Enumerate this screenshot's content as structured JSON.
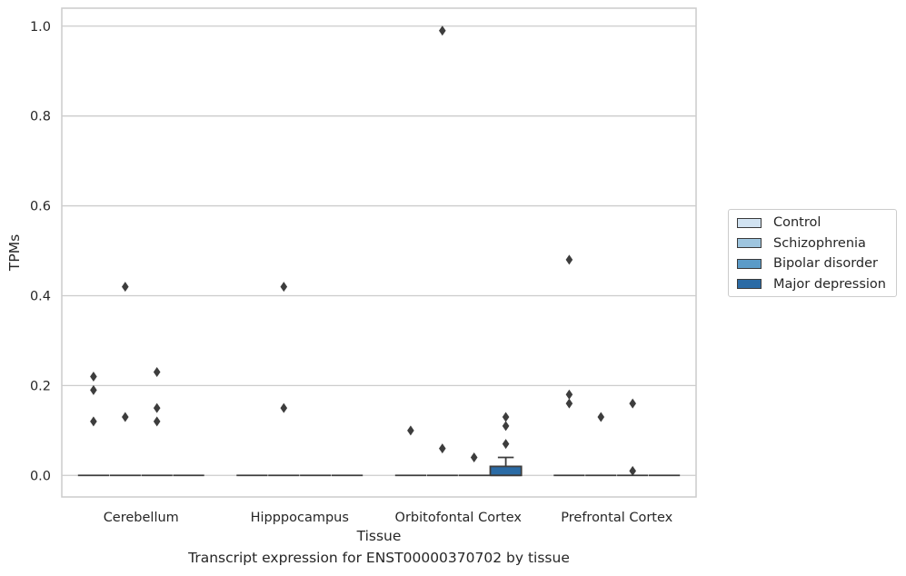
{
  "chart_data": {
    "type": "box",
    "xlabel": "Tissue",
    "ylabel": "TPMs",
    "ylim": [
      -0.048,
      1.04
    ],
    "yticks": [
      0.0,
      0.2,
      0.4,
      0.6,
      0.8,
      1.0
    ],
    "ytick_labels": [
      "0.0",
      "0.2",
      "0.4",
      "0.6",
      "0.8",
      "1.0"
    ],
    "grid": true,
    "legend_position": "right",
    "categories": [
      "Cerebellum",
      "Hipppocampus",
      "Orbitofontal Cortex",
      "Prefrontal Cortex"
    ],
    "series": [
      {
        "name": "Control",
        "color": "#d1e2f1",
        "boxes": [
          {
            "q1": 0,
            "median": 0,
            "q3": 0,
            "whisker_low": 0,
            "whisker_high": 0,
            "outliers": [
              0.12,
              0.19,
              0.22
            ]
          },
          {
            "q1": 0,
            "median": 0,
            "q3": 0,
            "whisker_low": 0,
            "whisker_high": 0,
            "outliers": []
          },
          {
            "q1": 0,
            "median": 0,
            "q3": 0,
            "whisker_low": 0,
            "whisker_high": 0,
            "outliers": [
              0.1
            ]
          },
          {
            "q1": 0,
            "median": 0,
            "q3": 0,
            "whisker_low": 0,
            "whisker_high": 0,
            "outliers": [
              0.16,
              0.18,
              0.48
            ]
          }
        ]
      },
      {
        "name": "Schizophrenia",
        "color": "#9ec5df",
        "boxes": [
          {
            "q1": 0,
            "median": 0,
            "q3": 0,
            "whisker_low": 0,
            "whisker_high": 0,
            "outliers": [
              0.13,
              0.42
            ]
          },
          {
            "q1": 0,
            "median": 0,
            "q3": 0,
            "whisker_low": 0,
            "whisker_high": 0,
            "outliers": [
              0.15,
              0.42
            ]
          },
          {
            "q1": 0,
            "median": 0,
            "q3": 0,
            "whisker_low": 0,
            "whisker_high": 0,
            "outliers": [
              0.06,
              0.99
            ]
          },
          {
            "q1": 0,
            "median": 0,
            "q3": 0,
            "whisker_low": 0,
            "whisker_high": 0,
            "outliers": [
              0.13
            ]
          }
        ]
      },
      {
        "name": "Bipolar disorder",
        "color": "#5b9bc8",
        "boxes": [
          {
            "q1": 0,
            "median": 0,
            "q3": 0,
            "whisker_low": 0,
            "whisker_high": 0,
            "outliers": [
              0.12,
              0.15,
              0.23
            ]
          },
          {
            "q1": 0,
            "median": 0,
            "q3": 0,
            "whisker_low": 0,
            "whisker_high": 0,
            "outliers": []
          },
          {
            "q1": 0,
            "median": 0,
            "q3": 0,
            "whisker_low": 0,
            "whisker_high": 0,
            "outliers": [
              0.04
            ]
          },
          {
            "q1": 0,
            "median": 0,
            "q3": 0,
            "whisker_low": 0,
            "whisker_high": 0,
            "outliers": [
              0.01,
              0.16
            ]
          }
        ]
      },
      {
        "name": "Major depression",
        "color": "#2b6ba5",
        "boxes": [
          {
            "q1": 0,
            "median": 0,
            "q3": 0,
            "whisker_low": 0,
            "whisker_high": 0,
            "outliers": []
          },
          {
            "q1": 0,
            "median": 0,
            "q3": 0,
            "whisker_low": 0,
            "whisker_high": 0,
            "outliers": []
          },
          {
            "q1": 0,
            "median": 0,
            "q3": 0.02,
            "whisker_low": 0,
            "whisker_high": 0.04,
            "outliers": [
              0.07,
              0.11,
              0.13
            ]
          },
          {
            "q1": 0,
            "median": 0,
            "q3": 0,
            "whisker_low": 0,
            "whisker_high": 0,
            "outliers": []
          }
        ]
      }
    ]
  },
  "caption": "Transcript expression for ENST00000370702 by tissue"
}
